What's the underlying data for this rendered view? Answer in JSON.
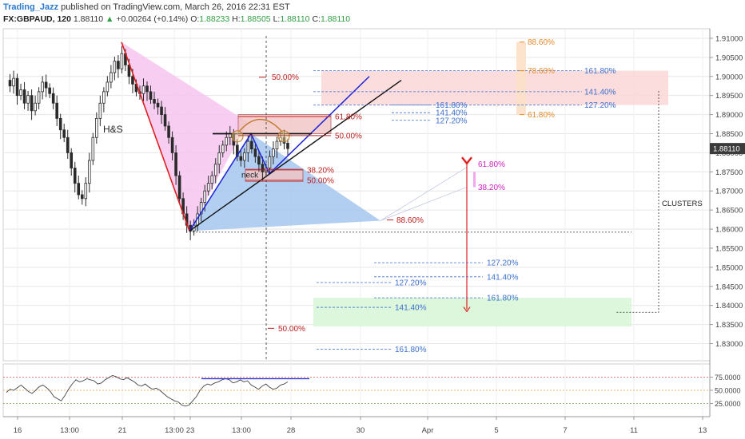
{
  "header": {
    "author": "Trading_Jazz",
    "published": "published on TradingView.com, March 26, 2016 22:31 EST",
    "symbol": "FX:GBPAUD, 120",
    "last": "1.88110",
    "arrow": "▲",
    "change": "+0.00264 (+0.14%)",
    "o_label": "O:",
    "o": "1.88233",
    "h_label": "H:",
    "h": "1.88505",
    "l_label": "L:",
    "l": "1.88110",
    "c_label": "C:",
    "c": "1.88110"
  },
  "chart_data": [
    {
      "type": "candlestick",
      "symbol": "FX:GBPAUD",
      "interval": "120",
      "ylim": [
        1.8255,
        1.9125
      ],
      "y_ticks": [
        "1.91000",
        "1.90500",
        "1.90000",
        "1.89500",
        "1.89000",
        "1.88500",
        "1.88000",
        "1.87500",
        "1.87000",
        "1.86500",
        "1.86000",
        "1.85500",
        "1.85000",
        "1.84500",
        "1.84000",
        "1.83500",
        "1.83000"
      ],
      "x_ticks": [
        "16",
        "13:00",
        "21",
        "13:00",
        "23",
        "13:00",
        "28",
        "30",
        "Apr",
        "5",
        "7",
        "11",
        "13"
      ],
      "last_price_label": "1.88110",
      "price_path": [
        1.899,
        1.8975,
        1.8995,
        1.895,
        1.8965,
        1.893,
        1.895,
        1.891,
        1.893,
        1.896,
        1.8985,
        1.897,
        1.8955,
        1.893,
        1.889,
        1.886,
        1.884,
        1.88,
        1.876,
        1.872,
        1.869,
        1.868,
        1.872,
        1.878,
        1.884,
        1.889,
        1.893,
        1.896,
        1.8985,
        1.901,
        1.904,
        1.902,
        1.906,
        1.903,
        1.9,
        1.898,
        1.896,
        1.8955,
        1.8975,
        1.896,
        1.894,
        1.893,
        1.892,
        1.89,
        1.887,
        1.884,
        1.88,
        1.874,
        1.868,
        1.864,
        1.861,
        1.8595,
        1.861,
        1.864,
        1.867,
        1.87,
        1.872,
        1.874,
        1.877,
        1.88,
        1.882,
        1.884,
        1.885,
        1.882,
        1.879,
        1.878,
        1.88,
        1.883,
        1.881,
        1.879,
        1.877,
        1.875,
        1.876,
        1.879,
        1.881,
        1.883,
        1.884,
        1.8825,
        1.8811
      ],
      "annotations": {
        "pattern": "H&S",
        "neck": "neck",
        "clusters": "CLUSTERS",
        "fib_left": [
          {
            "label": "50.00%",
            "price": 1.8998
          },
          {
            "label": "61.80%",
            "price": 1.8895
          },
          {
            "label": "50.00%",
            "price": 1.8845
          },
          {
            "label": "38.20%",
            "price": 1.8755
          },
          {
            "label": "50.00%",
            "price": 1.8728
          },
          {
            "label": "88.60%",
            "price": 1.8624
          },
          {
            "label": "50.00%",
            "price": 1.834
          }
        ],
        "fib_ext_upper": [
          "161.80%",
          "141.40%",
          "127.20%"
        ],
        "fib_ext_upper_inner": [
          "161.80%",
          "141.40%",
          "127.20%"
        ],
        "fib_orange": [
          "88.60%",
          "78.60%",
          "61.80%"
        ],
        "fib_magenta": [
          "61.80%",
          "38.20%"
        ],
        "fib_ext_lower": [
          "127.20%",
          "141.40%",
          "127.20%",
          "161.80%",
          "141.40%",
          "161.80%"
        ]
      }
    },
    {
      "type": "line",
      "name": "RSI",
      "ylim": [
        0,
        100
      ],
      "levels": [
        75,
        50,
        25
      ],
      "y_ticks": [
        "75.0000",
        "50.0000",
        "25.0000"
      ],
      "values": [
        46,
        52,
        50,
        55,
        60,
        54,
        48,
        44,
        50,
        57,
        60,
        55,
        48,
        38,
        34,
        30,
        40,
        52,
        62,
        70,
        66,
        68,
        72,
        70,
        68,
        62,
        64,
        70,
        74,
        78,
        76,
        72,
        70,
        74,
        70,
        66,
        60,
        58,
        62,
        56,
        52,
        54,
        50,
        44,
        38,
        34,
        30,
        28,
        22,
        20,
        22,
        30,
        38,
        50,
        58,
        62,
        60,
        64,
        66,
        70,
        72,
        70,
        64,
        66,
        70,
        66,
        68,
        60,
        56,
        52,
        58,
        62,
        56,
        52,
        54,
        60,
        62,
        66
      ]
    }
  ],
  "colors": {
    "bg": "#ffffff",
    "grid": "#e6e6e6",
    "red_line": "#e02020",
    "blue_line": "#1e22d8",
    "pink_fill": "#f6c6ef",
    "blue_fill": "#9fc3ef",
    "red_zone": "#fbd7d7",
    "green_zone": "#d8f6d8",
    "fib_blue": "#3b6fd0",
    "fib_red": "#c02020",
    "fib_orange": "#e88a2a",
    "fib_magenta": "#d020c0",
    "price_badge": "#3b3b3b"
  }
}
